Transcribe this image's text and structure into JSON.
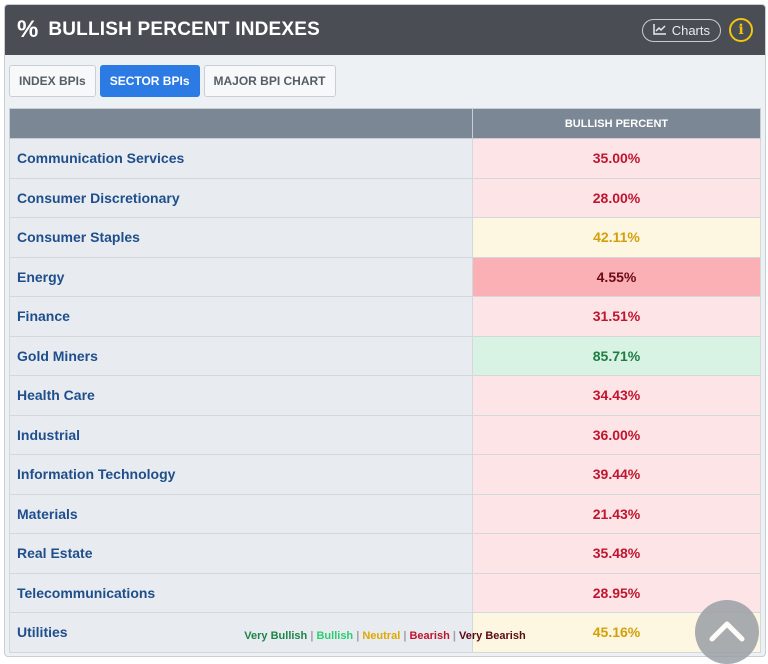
{
  "header": {
    "icon": "%",
    "title": "BULLISH PERCENT INDEXES",
    "charts_label": "Charts",
    "info_label": "i"
  },
  "tabs": [
    {
      "label": "INDEX BPIs",
      "active": false
    },
    {
      "label": "SECTOR BPIs",
      "active": true
    },
    {
      "label": "MAJOR BPI CHART",
      "active": false
    }
  ],
  "table": {
    "header": {
      "name": "",
      "value": "BULLISH PERCENT"
    },
    "rows": [
      {
        "name": "Communication Services",
        "value": "35.00%",
        "status": "bearish"
      },
      {
        "name": "Consumer Discretionary",
        "value": "28.00%",
        "status": "bearish"
      },
      {
        "name": "Consumer Staples",
        "value": "42.11%",
        "status": "neutral"
      },
      {
        "name": "Energy",
        "value": "4.55%",
        "status": "very-bearish"
      },
      {
        "name": "Finance",
        "value": "31.51%",
        "status": "bearish"
      },
      {
        "name": "Gold Miners",
        "value": "85.71%",
        "status": "bullish"
      },
      {
        "name": "Health Care",
        "value": "34.43%",
        "status": "bearish"
      },
      {
        "name": "Industrial",
        "value": "36.00%",
        "status": "bearish"
      },
      {
        "name": "Information Technology",
        "value": "39.44%",
        "status": "bearish"
      },
      {
        "name": "Materials",
        "value": "21.43%",
        "status": "bearish"
      },
      {
        "name": "Real Estate",
        "value": "35.48%",
        "status": "bearish"
      },
      {
        "name": "Telecommunications",
        "value": "28.95%",
        "status": "bearish"
      },
      {
        "name": "Utilities",
        "value": "45.16%",
        "status": "neutral"
      }
    ]
  },
  "legend": [
    {
      "label": "Very Bullish",
      "color": "#1e8449"
    },
    {
      "label": "Bullish",
      "color": "#2ecc71"
    },
    {
      "label": "Neutral",
      "color": "#e0a800"
    },
    {
      "label": "Bearish",
      "color": "#c0152f"
    },
    {
      "label": "Very Bearish",
      "color": "#5a0a12"
    }
  ],
  "status_styles": {
    "bearish": {
      "bg": "#fde4e6",
      "fg": "#c0152f"
    },
    "neutral": {
      "bg": "#fdf6e0",
      "fg": "#d4a00a"
    },
    "very-bearish": {
      "bg": "#fbb0b6",
      "fg": "#6b0a14"
    },
    "bullish": {
      "bg": "#d8f3e3",
      "fg": "#1e7d43"
    }
  }
}
